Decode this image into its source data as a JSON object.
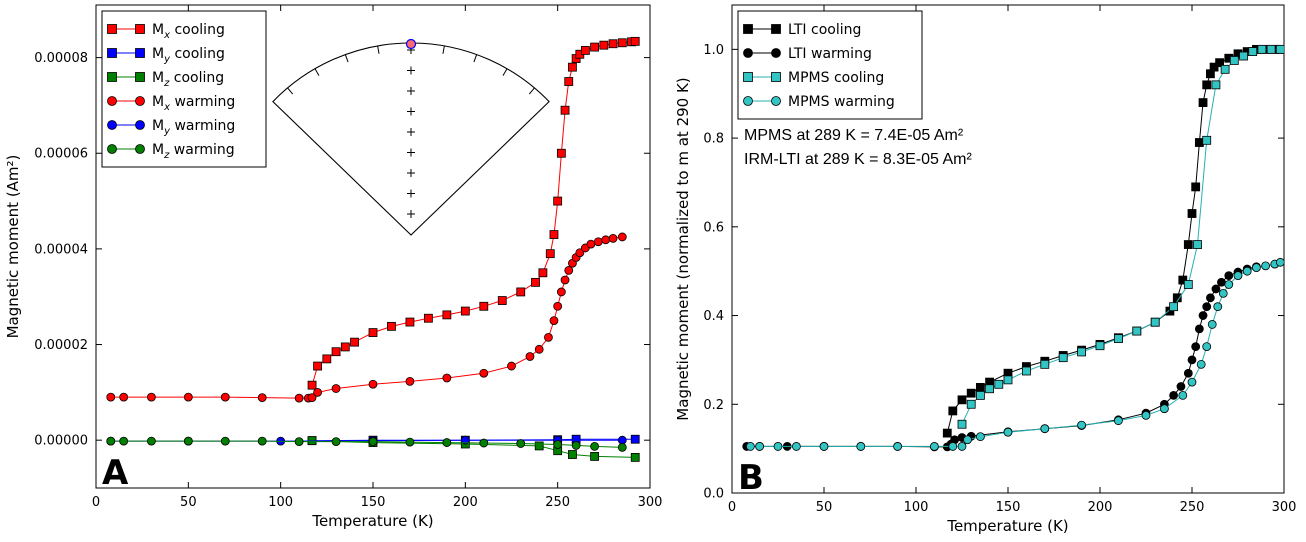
{
  "chart_data": [
    {
      "panel": "A",
      "type": "scatter",
      "xlabel": "Temperature (K)",
      "ylabel": "Magnetic moment (Am²)",
      "xlim": [
        0,
        300
      ],
      "ylim": [
        -1e-05,
        9.1e-05
      ],
      "xticks": [
        "0",
        "50",
        "100",
        "150",
        "200",
        "250",
        "300"
      ],
      "yticks": [
        "0.00000",
        "0.00002",
        "0.00004",
        "0.00006",
        "0.00008"
      ],
      "legend_position": "top-left",
      "series": [
        {
          "name": "Mx cooling",
          "label_base": "M",
          "label_sub": "x",
          "label_rest": " cooling",
          "marker": "square",
          "color": "#ff0000",
          "x": [
            117,
            120,
            125,
            130,
            135,
            140,
            150,
            160,
            170,
            180,
            190,
            200,
            210,
            220,
            230,
            238,
            242,
            246,
            248,
            250,
            252,
            254,
            256,
            258,
            260,
            262,
            265,
            270,
            275,
            280,
            285,
            290,
            292
          ],
          "y": [
            1.15e-05,
            1.55e-05,
            1.7e-05,
            1.85e-05,
            1.95e-05,
            2.05e-05,
            2.25e-05,
            2.38e-05,
            2.47e-05,
            2.55e-05,
            2.62e-05,
            2.7e-05,
            2.8e-05,
            2.92e-05,
            3.1e-05,
            3.3e-05,
            3.5e-05,
            3.9e-05,
            4.3e-05,
            5e-05,
            6e-05,
            6.9e-05,
            7.5e-05,
            7.8e-05,
            7.98e-05,
            8.07e-05,
            8.15e-05,
            8.22e-05,
            8.26e-05,
            8.29e-05,
            8.31e-05,
            8.33e-05,
            8.34e-05
          ]
        },
        {
          "name": "My cooling",
          "label_base": "M",
          "label_sub": "y",
          "label_rest": " cooling",
          "marker": "square",
          "color": "#0000ff",
          "x": [
            117,
            150,
            200,
            250,
            260,
            292
          ],
          "y": [
            -1e-07,
            0,
            0,
            1e-07,
            2e-07,
            2e-07
          ]
        },
        {
          "name": "Mz cooling",
          "label_base": "M",
          "label_sub": "z",
          "label_rest": " cooling",
          "marker": "square",
          "color": "#008000",
          "x": [
            117,
            150,
            200,
            240,
            250,
            258,
            270,
            292
          ],
          "y": [
            -1e-07,
            -5e-07,
            -8e-07,
            -1.2e-06,
            -2.2e-06,
            -3e-06,
            -3.4e-06,
            -3.6e-06
          ]
        },
        {
          "name": "Mx warming",
          "label_base": "M",
          "label_sub": "x",
          "label_rest": " warming",
          "marker": "circle",
          "color": "#ff0000",
          "x": [
            8,
            15,
            30,
            50,
            70,
            90,
            110,
            115,
            117,
            120,
            130,
            150,
            170,
            190,
            210,
            225,
            235,
            240,
            245,
            248,
            250,
            252,
            254,
            256,
            258,
            260,
            262,
            265,
            268,
            272,
            276,
            280,
            285
          ],
          "y": [
            9e-06,
            9e-06,
            9e-06,
            9e-06,
            9e-06,
            8.9e-06,
            8.8e-06,
            8.8e-06,
            8.9e-06,
            1e-05,
            1.08e-05,
            1.17e-05,
            1.23e-05,
            1.3e-05,
            1.4e-05,
            1.55e-05,
            1.75e-05,
            1.9e-05,
            2.15e-05,
            2.5e-05,
            2.8e-05,
            3.1e-05,
            3.35e-05,
            3.55e-05,
            3.7e-05,
            3.82e-05,
            3.92e-05,
            4.02e-05,
            4.1e-05,
            4.15e-05,
            4.19e-05,
            4.22e-05,
            4.25e-05
          ]
        },
        {
          "name": "My warming",
          "label_base": "M",
          "label_sub": "y",
          "label_rest": " warming",
          "marker": "circle",
          "color": "#0000ff",
          "x": [
            8,
            50,
            100,
            150,
            200,
            250,
            285
          ],
          "y": [
            -2e-07,
            -2e-07,
            -2e-07,
            -1e-07,
            0,
            0,
            0
          ]
        },
        {
          "name": "Mz warming",
          "label_base": "M",
          "label_sub": "z",
          "label_rest": " warming",
          "marker": "circle",
          "color": "#008000",
          "x": [
            8,
            15,
            30,
            50,
            70,
            90,
            110,
            130,
            150,
            170,
            190,
            210,
            230,
            250,
            260,
            270,
            285
          ],
          "y": [
            -2e-07,
            -2e-07,
            -2e-07,
            -2e-07,
            -2e-07,
            -2e-07,
            -3e-07,
            -3e-07,
            -3e-07,
            -4e-07,
            -5e-07,
            -6e-07,
            -7e-07,
            -9e-07,
            -1.1e-06,
            -1.3e-06,
            -1.5e-06
          ]
        }
      ],
      "panel_label": "A"
    },
    {
      "panel": "B",
      "type": "scatter",
      "xlabel": "Temperature (K)",
      "ylabel": "Magnetic moment (normalized to m at 290 K)",
      "xlim": [
        0,
        300
      ],
      "ylim": [
        0,
        1.1
      ],
      "xticks": [
        "0",
        "50",
        "100",
        "150",
        "200",
        "250",
        "300"
      ],
      "yticks": [
        "0.0",
        "0.2",
        "0.4",
        "0.6",
        "0.8",
        "1.0"
      ],
      "legend_position": "top-left",
      "series": [
        {
          "name": "LTI cooling",
          "marker": "square",
          "color": "#000000",
          "face": "#000000",
          "x": [
            117,
            120,
            125,
            130,
            135,
            140,
            150,
            160,
            170,
            180,
            190,
            200,
            210,
            220,
            230,
            238,
            242,
            245,
            248,
            250,
            252,
            254,
            256,
            258,
            260,
            262,
            265,
            270,
            275,
            280,
            285,
            290,
            295,
            298
          ],
          "y": [
            0.135,
            0.185,
            0.21,
            0.225,
            0.238,
            0.25,
            0.27,
            0.285,
            0.297,
            0.31,
            0.322,
            0.335,
            0.35,
            0.365,
            0.385,
            0.41,
            0.44,
            0.48,
            0.56,
            0.63,
            0.69,
            0.79,
            0.88,
            0.92,
            0.945,
            0.96,
            0.97,
            0.98,
            0.99,
            0.995,
            1.0,
            1.0,
            1.0,
            1.0
          ]
        },
        {
          "name": "LTI warming",
          "marker": "circle",
          "color": "#000000",
          "face": "#000000",
          "x": [
            8,
            15,
            30,
            50,
            70,
            90,
            110,
            117,
            119,
            121,
            125,
            130,
            150,
            170,
            190,
            210,
            225,
            235,
            240,
            244,
            248,
            250,
            252,
            254,
            256,
            258,
            260,
            263,
            266,
            270,
            275,
            280,
            285
          ],
          "y": [
            0.105,
            0.105,
            0.105,
            0.105,
            0.105,
            0.105,
            0.104,
            0.104,
            0.11,
            0.12,
            0.125,
            0.128,
            0.138,
            0.145,
            0.152,
            0.165,
            0.18,
            0.2,
            0.22,
            0.24,
            0.27,
            0.3,
            0.33,
            0.37,
            0.4,
            0.42,
            0.44,
            0.46,
            0.475,
            0.49,
            0.498,
            0.505,
            0.51
          ]
        },
        {
          "name": "MPMS cooling",
          "marker": "square",
          "color": "#26b0b0",
          "face": "#33c4c4",
          "x": [
            125,
            130,
            135,
            140,
            145,
            150,
            160,
            170,
            180,
            190,
            200,
            210,
            220,
            230,
            240,
            248,
            253,
            258,
            263,
            268,
            273,
            278,
            283,
            288,
            293,
            298
          ],
          "y": [
            0.155,
            0.2,
            0.22,
            0.235,
            0.245,
            0.255,
            0.275,
            0.29,
            0.305,
            0.318,
            0.332,
            0.348,
            0.365,
            0.385,
            0.42,
            0.47,
            0.56,
            0.795,
            0.92,
            0.955,
            0.975,
            0.985,
            0.995,
            1.0,
            1.0,
            1.0
          ]
        },
        {
          "name": "MPMS warming",
          "marker": "circle",
          "color": "#26b0b0",
          "face": "#33c4c4",
          "x": [
            10,
            15,
            25,
            35,
            50,
            70,
            90,
            110,
            120,
            125,
            128,
            135,
            150,
            170,
            190,
            210,
            225,
            235,
            245,
            250,
            255,
            258,
            261,
            264,
            267,
            270,
            275,
            280,
            285,
            290,
            295,
            298
          ],
          "y": [
            0.105,
            0.105,
            0.105,
            0.105,
            0.105,
            0.105,
            0.105,
            0.105,
            0.105,
            0.105,
            0.12,
            0.127,
            0.137,
            0.145,
            0.153,
            0.163,
            0.175,
            0.19,
            0.22,
            0.25,
            0.29,
            0.33,
            0.38,
            0.42,
            0.45,
            0.47,
            0.49,
            0.5,
            0.508,
            0.512,
            0.516,
            0.52
          ]
        }
      ],
      "annotations": [
        {
          "text": "MPMS at 289 K   =  7.4E-05 Am²"
        },
        {
          "text": "IRM-LTI at 289 K =  8.3E-05 Am²"
        }
      ],
      "panel_label": "B"
    }
  ]
}
